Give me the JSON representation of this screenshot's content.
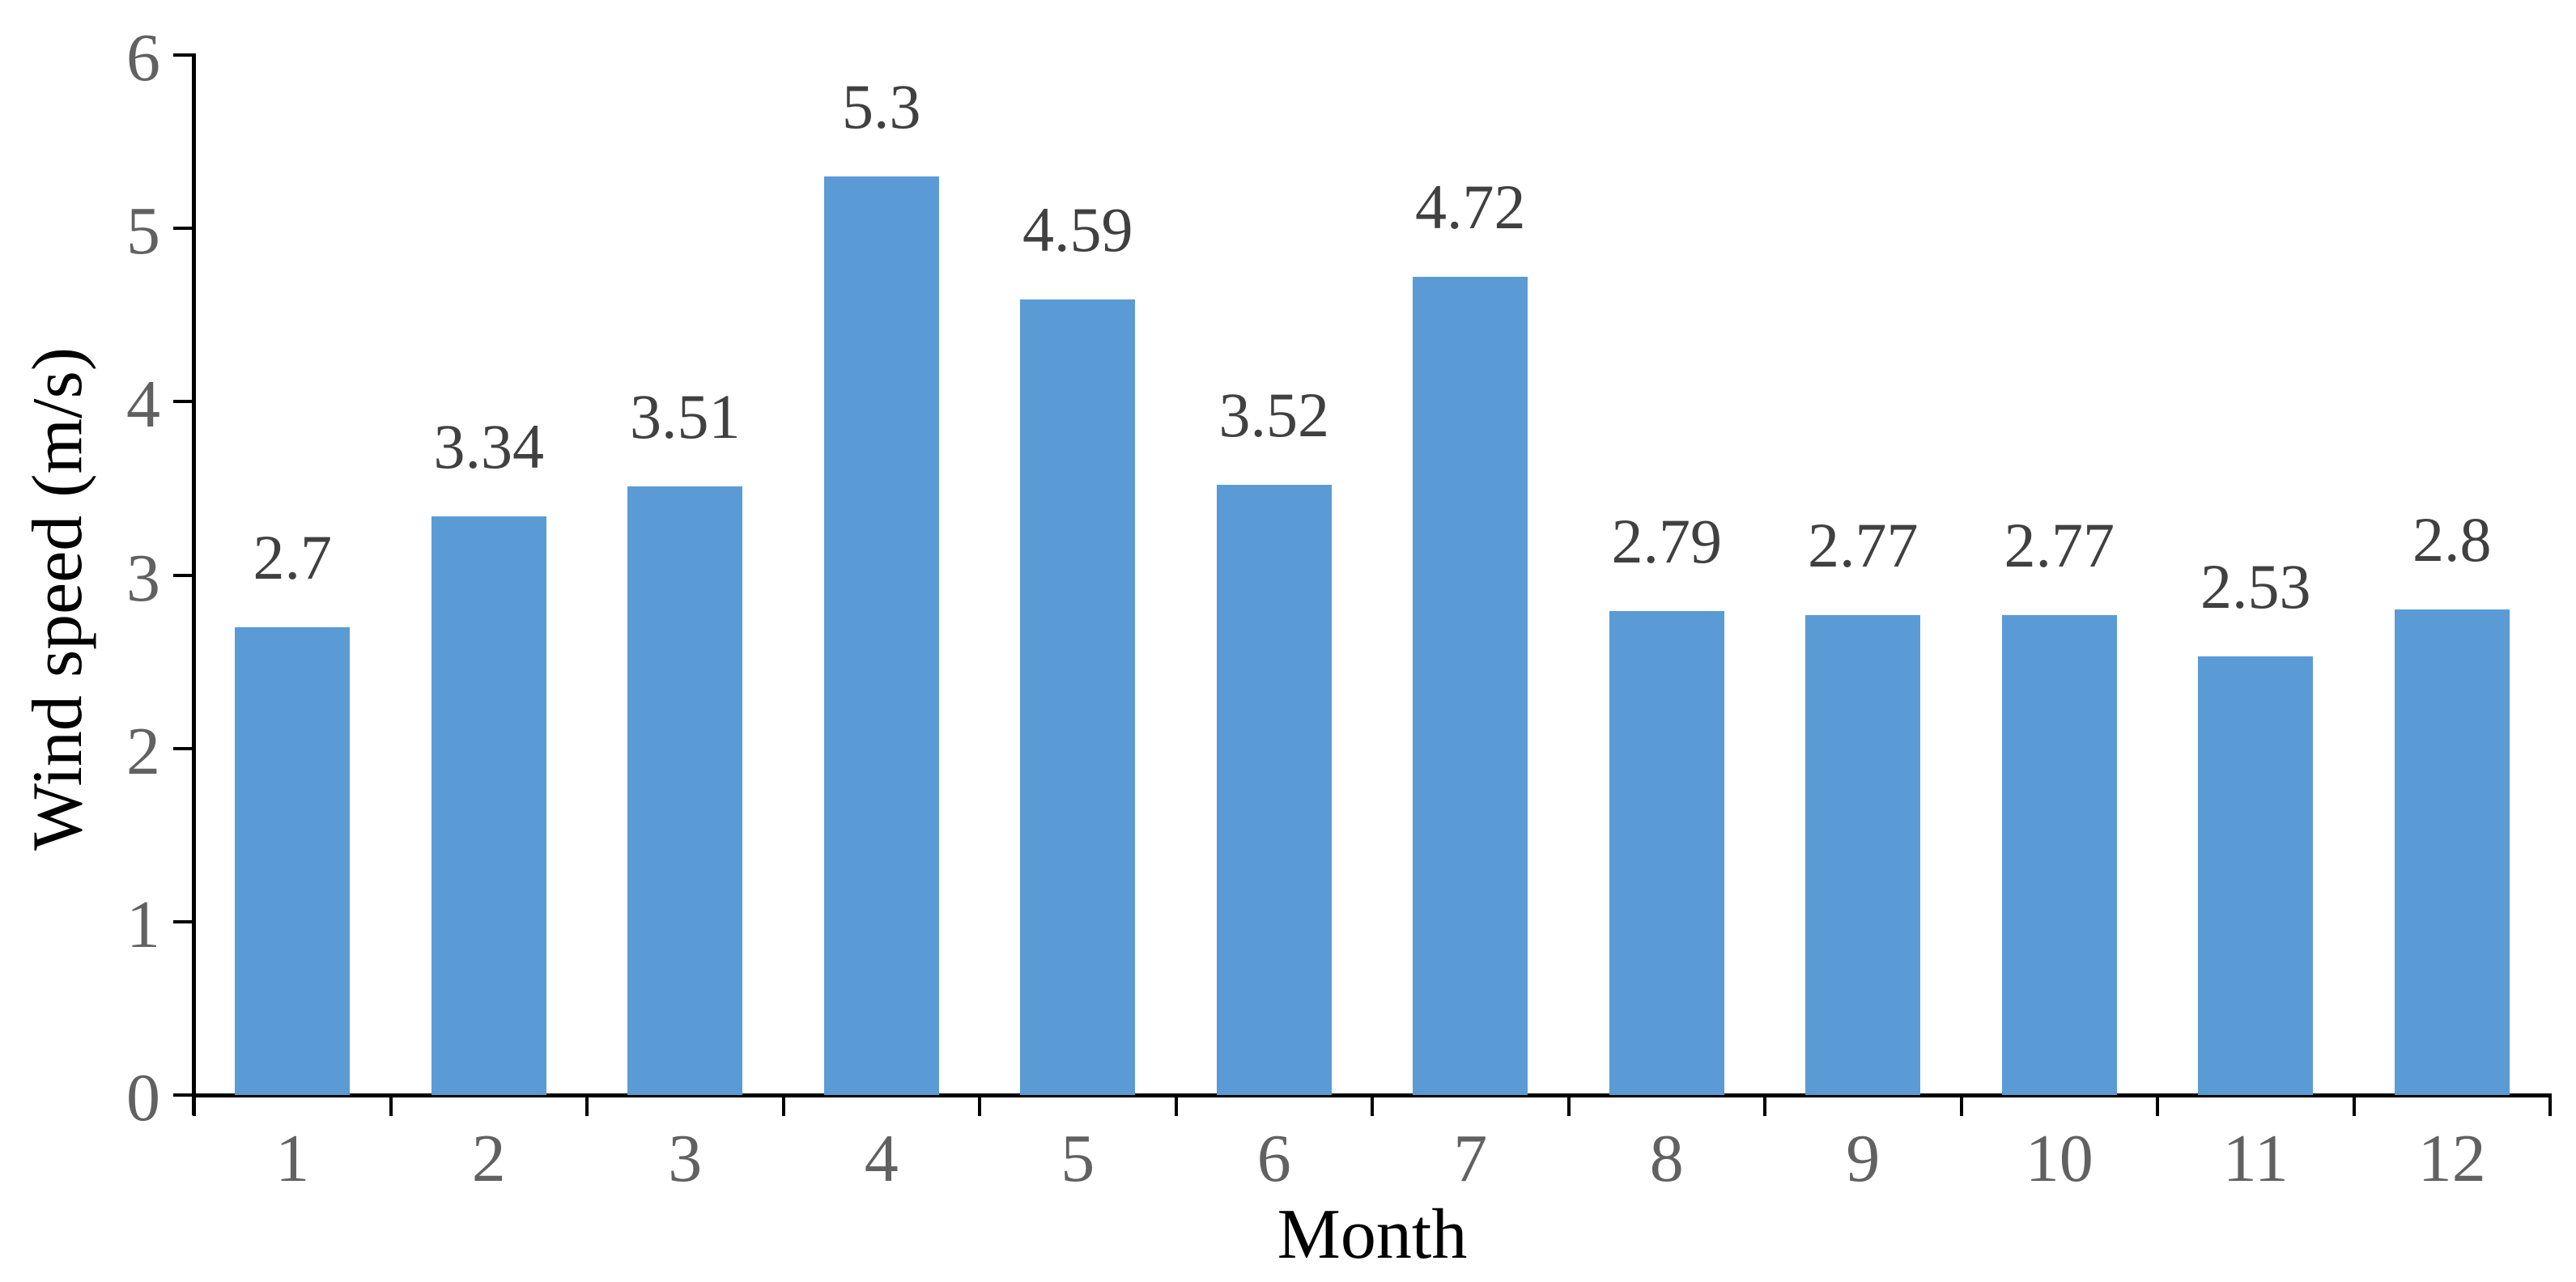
{
  "chart_data": {
    "type": "bar",
    "title": "",
    "categories": [
      "1",
      "2",
      "3",
      "4",
      "5",
      "6",
      "7",
      "8",
      "9",
      "10",
      "11",
      "12"
    ],
    "values": [
      2.7,
      3.34,
      3.51,
      5.3,
      4.59,
      3.52,
      4.72,
      2.79,
      2.77,
      2.77,
      2.53,
      2.8
    ],
    "data_labels": [
      "2.7",
      "3.34",
      "3.51",
      "5.3",
      "4.59",
      "3.52",
      "4.72",
      "2.79",
      "2.77",
      "2.77",
      "2.53",
      "2.8"
    ],
    "xlabel": "Month",
    "ylabel": "Wind speed (m/s)",
    "ylim": [
      0,
      6
    ],
    "yticks": [
      0,
      1,
      2,
      3,
      4,
      5,
      6
    ],
    "grid": false,
    "legend": "none",
    "data_labels_position": "outside-end",
    "bar_color": "#5B9BD5",
    "axis_line_color": "#000000",
    "tick_label_color": "#616161",
    "data_label_color": "#404040",
    "axis_title_color": "#000000",
    "background_color": "#FFFFFF"
  }
}
